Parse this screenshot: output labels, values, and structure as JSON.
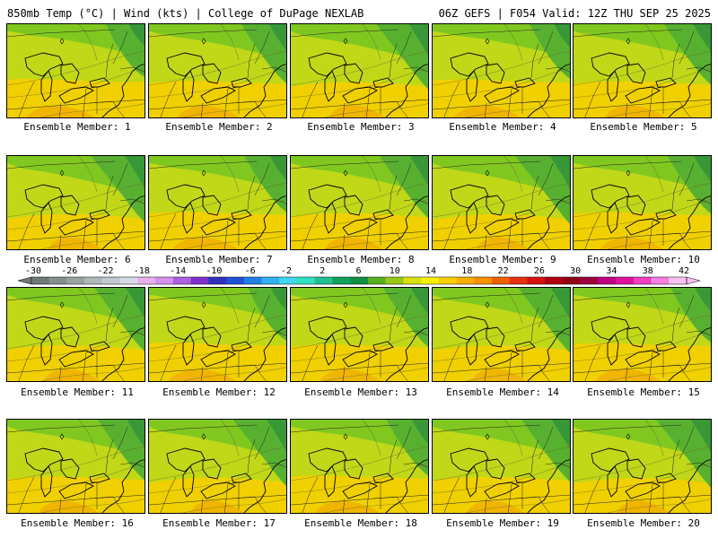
{
  "header": {
    "left": "850mb Temp (°C) | Wind (kts) | College of DuPage NEXLAB",
    "right": "06Z GEFS | F054 Valid: 12Z THU SEP 25 2025"
  },
  "colorbar": {
    "ticks": [
      "-30",
      "-26",
      "-22",
      "-18",
      "-14",
      "-10",
      "-6",
      "-2",
      "2",
      "6",
      "10",
      "14",
      "18",
      "22",
      "26",
      "30",
      "34",
      "38",
      "42"
    ],
    "colors": [
      "#707878",
      "#868e8e",
      "#9aa2a2",
      "#b0b8b8",
      "#c0c8d0",
      "#d8d8ec",
      "#e8b0ec",
      "#d890ec",
      "#b060e0",
      "#8030d0",
      "#3030c0",
      "#2050d8",
      "#2080e8",
      "#30b0f0",
      "#40d8f0",
      "#30e0c0",
      "#20c090",
      "#10a060",
      "#109040",
      "#58b020",
      "#98c818",
      "#d8e010",
      "#f8f000",
      "#f8d000",
      "#f8b000",
      "#f89000",
      "#f06000",
      "#e83010",
      "#d81010",
      "#b00010",
      "#900018",
      "#a00040",
      "#c00080",
      "#e010a0",
      "#f040c0",
      "#f880e0",
      "#f8c0f0"
    ]
  },
  "map_colors": {
    "warm": "#f0d000",
    "mid": "#c0d818",
    "cool": "#80c820",
    "cold": "#58b030",
    "coldest": "#389838",
    "hot": "#f0b000"
  },
  "panels": [
    {
      "label": "Ensemble Member: 1"
    },
    {
      "label": "Ensemble Member: 2"
    },
    {
      "label": "Ensemble Member: 3"
    },
    {
      "label": "Ensemble Member: 4"
    },
    {
      "label": "Ensemble Member: 5"
    },
    {
      "label": "Ensemble Member: 6"
    },
    {
      "label": "Ensemble Member: 7"
    },
    {
      "label": "Ensemble Member: 8"
    },
    {
      "label": "Ensemble Member: 9"
    },
    {
      "label": "Ensemble Member: 10"
    },
    {
      "label": "Ensemble Member: 11"
    },
    {
      "label": "Ensemble Member: 12"
    },
    {
      "label": "Ensemble Member: 13"
    },
    {
      "label": "Ensemble Member: 14"
    },
    {
      "label": "Ensemble Member: 15"
    },
    {
      "label": "Ensemble Member: 16"
    },
    {
      "label": "Ensemble Member: 17"
    },
    {
      "label": "Ensemble Member: 18"
    },
    {
      "label": "Ensemble Member: 19"
    },
    {
      "label": "Ensemble Member: 20"
    }
  ]
}
